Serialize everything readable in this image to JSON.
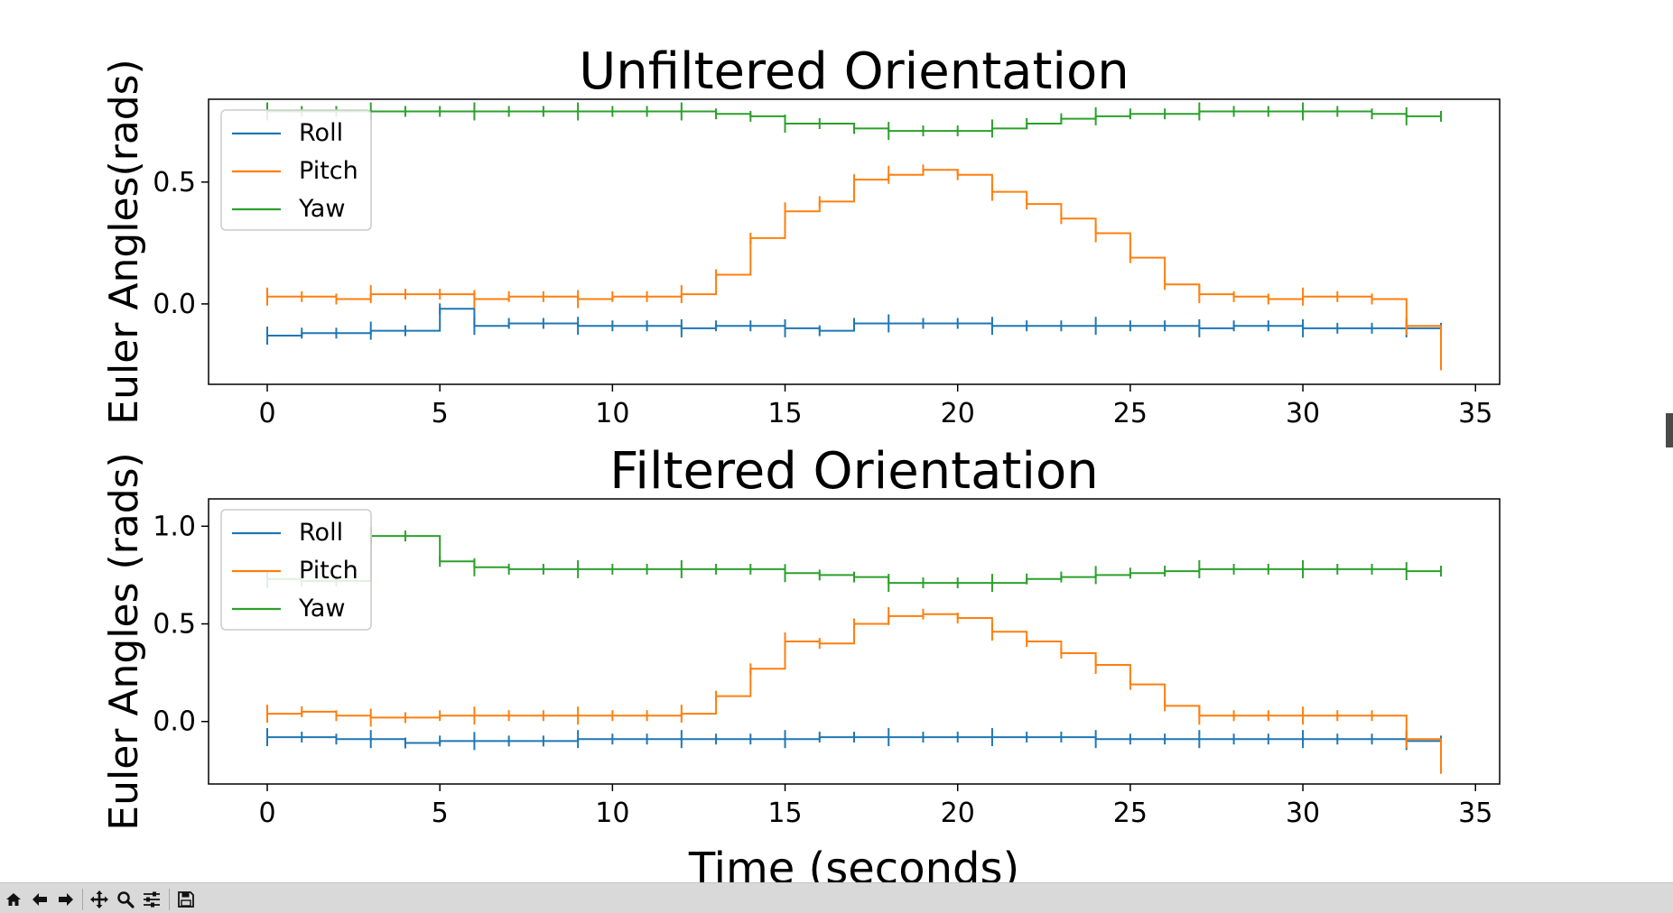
{
  "chart_data": [
    {
      "type": "line",
      "title": "Unfiltered Orientation",
      "xlabel": "",
      "ylabel": "Euler Angles(rads)",
      "xlim": [
        -1.7,
        35.7
      ],
      "ylim": [
        -0.33,
        0.84
      ],
      "xticks": [
        0,
        5,
        10,
        15,
        20,
        25,
        30,
        35
      ],
      "yticks": [
        0.0,
        0.5
      ],
      "grid": false,
      "legend_position": "top-left",
      "x": [
        0,
        1,
        2,
        3,
        4,
        5,
        6,
        7,
        8,
        9,
        10,
        11,
        12,
        13,
        14,
        15,
        16,
        17,
        18,
        19,
        20,
        21,
        22,
        23,
        24,
        25,
        26,
        27,
        28,
        29,
        30,
        31,
        32,
        33,
        34
      ],
      "series": [
        {
          "name": "Roll",
          "color": "#1f77b4",
          "values": [
            -0.13,
            -0.12,
            -0.12,
            -0.11,
            -0.11,
            -0.02,
            -0.09,
            -0.08,
            -0.08,
            -0.09,
            -0.09,
            -0.09,
            -0.1,
            -0.09,
            -0.09,
            -0.1,
            -0.11,
            -0.08,
            -0.08,
            -0.08,
            -0.08,
            -0.09,
            -0.09,
            -0.09,
            -0.09,
            -0.09,
            -0.09,
            -0.1,
            -0.09,
            -0.09,
            -0.1,
            -0.1,
            -0.1,
            -0.1,
            -0.1
          ]
        },
        {
          "name": "Pitch",
          "color": "#ff7f0e",
          "values": [
            0.03,
            0.03,
            0.02,
            0.04,
            0.04,
            0.04,
            0.02,
            0.03,
            0.03,
            0.02,
            0.03,
            0.03,
            0.04,
            0.12,
            0.27,
            0.38,
            0.42,
            0.51,
            0.53,
            0.55,
            0.53,
            0.46,
            0.41,
            0.35,
            0.29,
            0.19,
            0.08,
            0.04,
            0.03,
            0.02,
            0.03,
            0.03,
            0.02,
            -0.09,
            -0.25
          ]
        },
        {
          "name": "Yaw",
          "color": "#2ca02c",
          "values": [
            0.79,
            0.79,
            0.79,
            0.79,
            0.79,
            0.79,
            0.79,
            0.79,
            0.79,
            0.79,
            0.79,
            0.79,
            0.79,
            0.78,
            0.77,
            0.74,
            0.74,
            0.72,
            0.71,
            0.71,
            0.71,
            0.72,
            0.74,
            0.76,
            0.77,
            0.78,
            0.78,
            0.79,
            0.79,
            0.79,
            0.79,
            0.79,
            0.78,
            0.77,
            0.77
          ]
        }
      ]
    },
    {
      "type": "line",
      "title": "Filtered Orientation",
      "xlabel": "Time (seconds)",
      "ylabel": "Euler Angles (rads)",
      "xlim": [
        -1.7,
        35.7
      ],
      "ylim": [
        -0.32,
        1.14
      ],
      "xticks": [
        0,
        5,
        10,
        15,
        20,
        25,
        30,
        35
      ],
      "yticks": [
        0.0,
        0.5,
        1.0
      ],
      "grid": false,
      "legend_position": "top-left",
      "x": [
        0,
        1,
        2,
        3,
        4,
        5,
        6,
        7,
        8,
        9,
        10,
        11,
        12,
        13,
        14,
        15,
        16,
        17,
        18,
        19,
        20,
        21,
        22,
        23,
        24,
        25,
        26,
        27,
        28,
        29,
        30,
        31,
        32,
        33,
        34
      ],
      "series": [
        {
          "name": "Roll",
          "color": "#1f77b4",
          "values": [
            -0.08,
            -0.08,
            -0.09,
            -0.09,
            -0.11,
            -0.1,
            -0.1,
            -0.1,
            -0.1,
            -0.09,
            -0.09,
            -0.09,
            -0.09,
            -0.09,
            -0.09,
            -0.09,
            -0.08,
            -0.08,
            -0.08,
            -0.08,
            -0.08,
            -0.08,
            -0.08,
            -0.08,
            -0.09,
            -0.09,
            -0.09,
            -0.09,
            -0.09,
            -0.09,
            -0.09,
            -0.09,
            -0.09,
            -0.1,
            -0.1
          ]
        },
        {
          "name": "Pitch",
          "color": "#ff7f0e",
          "values": [
            0.04,
            0.05,
            0.03,
            0.02,
            0.02,
            0.03,
            0.03,
            0.03,
            0.03,
            0.03,
            0.03,
            0.03,
            0.04,
            0.13,
            0.27,
            0.41,
            0.4,
            0.5,
            0.54,
            0.55,
            0.53,
            0.46,
            0.41,
            0.35,
            0.29,
            0.19,
            0.08,
            0.03,
            0.03,
            0.03,
            0.03,
            0.03,
            0.03,
            -0.09,
            -0.24
          ]
        },
        {
          "name": "Yaw",
          "color": "#2ca02c",
          "values": [
            0.73,
            0.72,
            0.72,
            0.95,
            0.95,
            0.82,
            0.79,
            0.78,
            0.78,
            0.78,
            0.78,
            0.78,
            0.78,
            0.78,
            0.78,
            0.76,
            0.75,
            0.74,
            0.71,
            0.71,
            0.71,
            0.71,
            0.73,
            0.74,
            0.75,
            0.76,
            0.77,
            0.78,
            0.78,
            0.78,
            0.78,
            0.78,
            0.78,
            0.77,
            0.77
          ]
        }
      ]
    }
  ],
  "toolbar": {
    "buttons": [
      {
        "name": "home-button",
        "icon": "home-icon"
      },
      {
        "name": "back-button",
        "icon": "arrow-left-icon"
      },
      {
        "name": "forward-button",
        "icon": "arrow-right-icon"
      },
      {
        "name": "pan-button",
        "icon": "move-icon"
      },
      {
        "name": "zoom-button",
        "icon": "magnifier-icon"
      },
      {
        "name": "configure-subplots-button",
        "icon": "sliders-icon"
      },
      {
        "name": "save-button",
        "icon": "floppy-disk-icon"
      }
    ]
  }
}
